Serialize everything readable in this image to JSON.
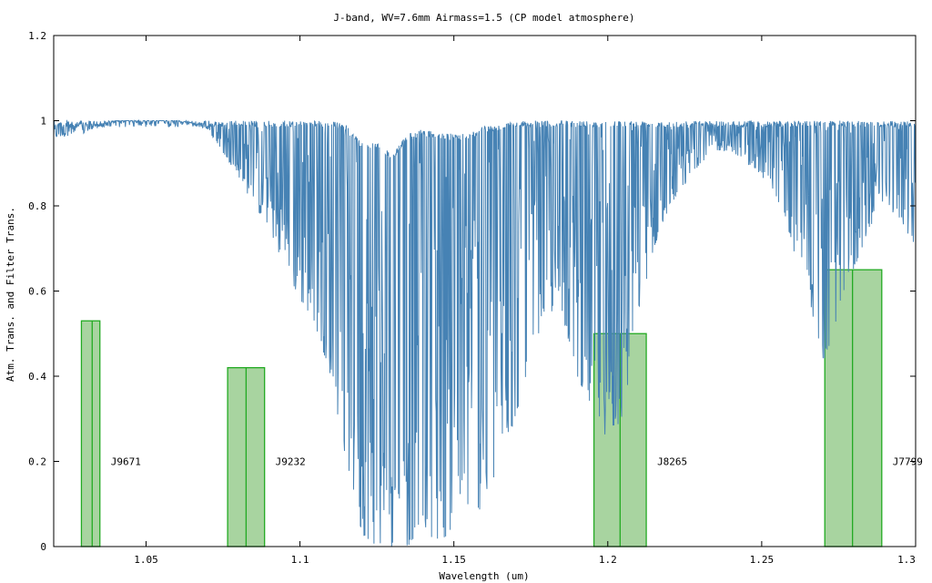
{
  "chart_data": {
    "type": "line",
    "title": "J-band,  WV=7.6mm  Airmass=1.5 (CP model atmosphere)",
    "xlabel": "Wavelength (um)",
    "ylabel": "Atm. Trans. and Filter Trans.",
    "xlim": [
      1.02,
      1.3
    ],
    "ylim": [
      0,
      1.2
    ],
    "xticks": [
      1.05,
      1.1,
      1.15,
      1.2,
      1.25,
      1.3
    ],
    "xtick_labels": [
      "1.05",
      "1.1",
      "1.15",
      "1.2",
      "1.25",
      "1.3"
    ],
    "yticks": [
      0,
      0.2,
      0.4,
      0.6,
      0.8,
      1,
      1.2
    ],
    "ytick_labels": [
      "0",
      "0.2",
      "0.4",
      "0.6",
      "0.8",
      "1",
      "1.2"
    ],
    "grid": false,
    "colors": {
      "atmosphere": "#4682b4",
      "filter_fill": "#a8d4a0",
      "filter_edge": "#22aa22"
    },
    "atmosphere_envelope": {
      "x": [
        1.02,
        1.03,
        1.04,
        1.05,
        1.06,
        1.07,
        1.08,
        1.085,
        1.09,
        1.095,
        1.1,
        1.105,
        1.11,
        1.115,
        1.12,
        1.125,
        1.13,
        1.135,
        1.14,
        1.145,
        1.15,
        1.155,
        1.16,
        1.165,
        1.17,
        1.175,
        1.18,
        1.185,
        1.19,
        1.195,
        1.2,
        1.205,
        1.21,
        1.215,
        1.22,
        1.225,
        1.23,
        1.235,
        1.24,
        1.245,
        1.25,
        1.255,
        1.26,
        1.265,
        1.27,
        1.275,
        1.28,
        1.285,
        1.29,
        1.295,
        1.3
      ],
      "max": [
        1.0,
        1.0,
        1.0,
        1.0,
        1.0,
        1.0,
        1.0,
        1.0,
        1.0,
        1.0,
        1.0,
        1.0,
        1.0,
        0.99,
        0.95,
        0.95,
        0.92,
        0.97,
        0.98,
        0.97,
        0.97,
        0.97,
        0.99,
        0.99,
        1.0,
        1.0,
        1.0,
        1.0,
        1.0,
        1.0,
        1.0,
        1.0,
        1.0,
        1.0,
        1.0,
        1.0,
        1.0,
        1.0,
        1.0,
        1.0,
        1.0,
        1.0,
        1.0,
        1.0,
        1.0,
        1.0,
        1.0,
        1.0,
        1.0,
        1.0,
        1.0
      ],
      "min": [
        0.96,
        0.97,
        1.0,
        1.0,
        1.0,
        0.98,
        0.87,
        0.8,
        0.75,
        0.65,
        0.58,
        0.52,
        0.4,
        0.2,
        0.03,
        0.0,
        0.0,
        0.0,
        0.05,
        0.0,
        0.05,
        0.1,
        0.08,
        0.2,
        0.3,
        0.45,
        0.55,
        0.55,
        0.4,
        0.32,
        0.25,
        0.3,
        0.55,
        0.7,
        0.8,
        0.85,
        0.9,
        0.93,
        0.93,
        0.9,
        0.87,
        0.82,
        0.7,
        0.6,
        0.42,
        0.55,
        0.65,
        0.75,
        0.8,
        0.77,
        0.7
      ]
    },
    "filters": [
      {
        "name": "J9671",
        "x_start": 1.029,
        "x_peak": 1.0325,
        "x_end": 1.035,
        "height": 0.53
      },
      {
        "name": "J9232",
        "x_start": 1.0765,
        "x_peak": 1.0825,
        "x_end": 1.0885,
        "height": 0.42
      },
      {
        "name": "J8265",
        "x_start": 1.1955,
        "x_peak": 1.204,
        "x_end": 1.2125,
        "height": 0.5
      },
      {
        "name": "J7799",
        "x_start": 1.2705,
        "x_peak": 1.2795,
        "x_end": 1.289,
        "height": 0.65
      }
    ]
  }
}
